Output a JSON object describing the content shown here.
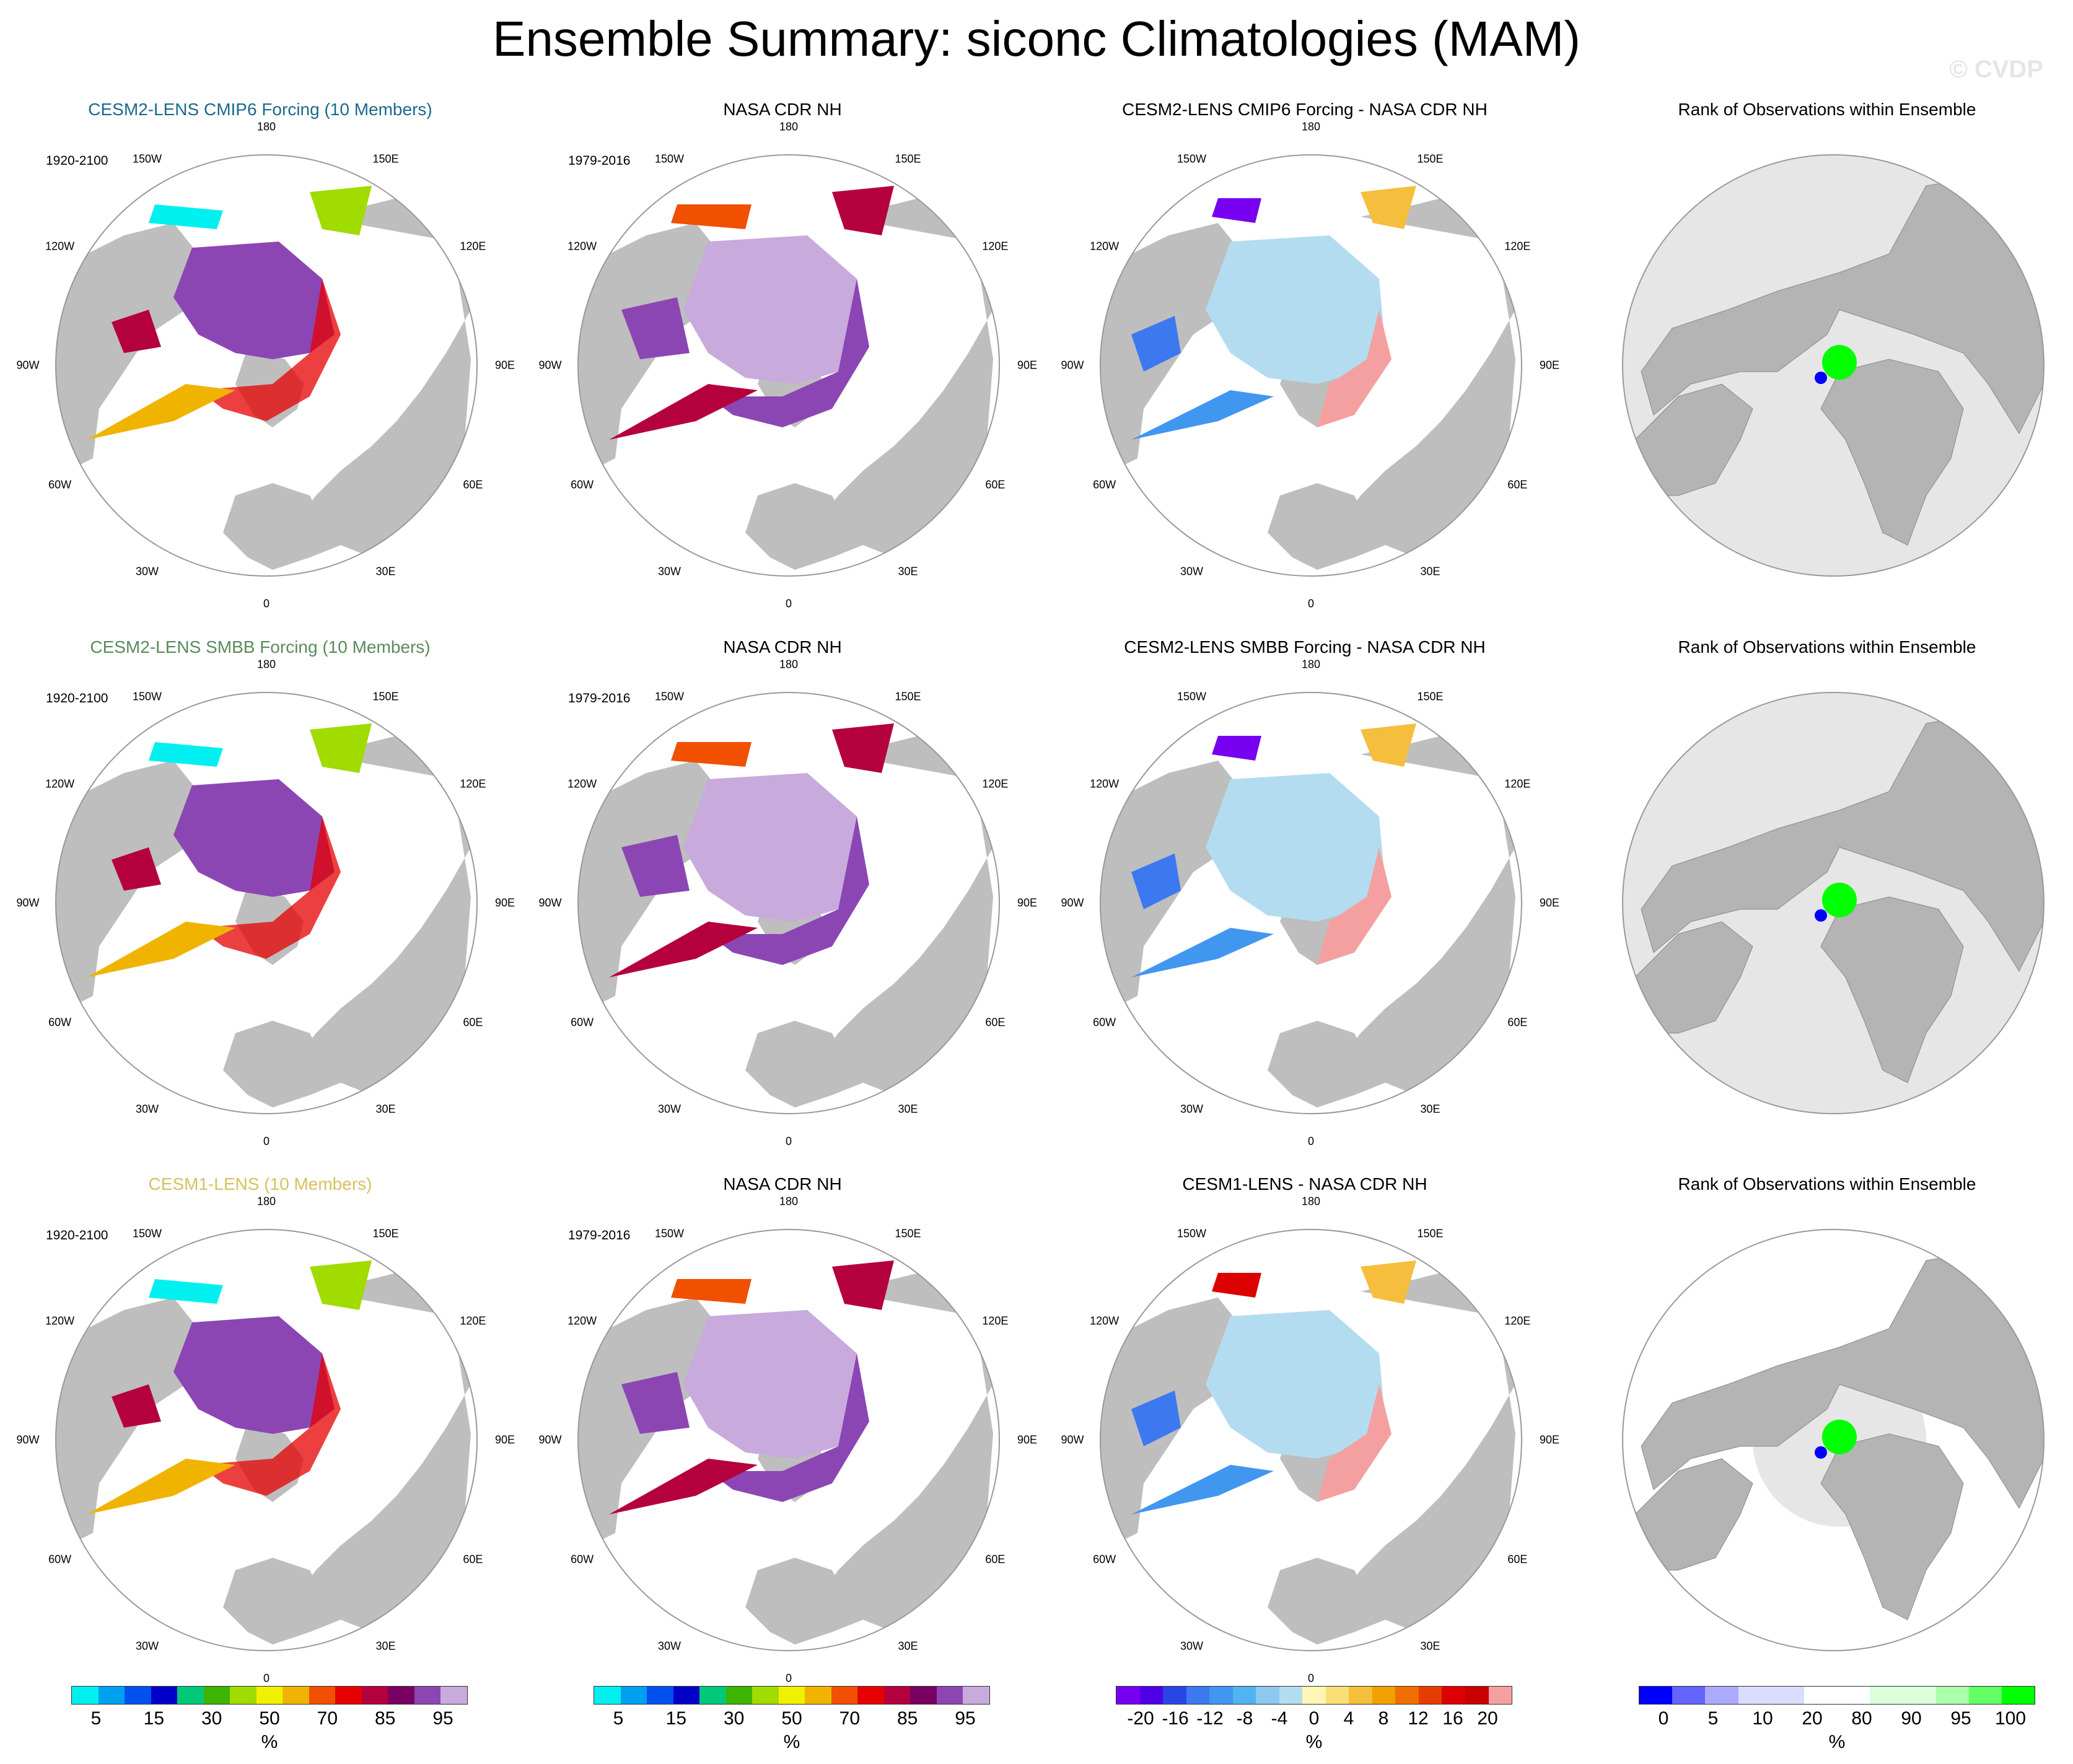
{
  "title": "Ensemble Summary: siconc Climatologies (MAM)",
  "copyright": "© CVDP",
  "lon_labels": [
    "180",
    "150E",
    "120E",
    "90E",
    "60E",
    "30E",
    "0",
    "30W",
    "60W",
    "90W",
    "120W",
    "150W"
  ],
  "rows": [
    {
      "panels": [
        {
          "title": "CESM2-LENS CMIP6 Forcing (10 Members)",
          "title_color": "#1a6a8e",
          "period": "1920-2100",
          "kind": "model"
        },
        {
          "title": "NASA CDR NH",
          "title_color": "#000000",
          "period": "1979-2016",
          "kind": "obs"
        },
        {
          "title": "CESM2-LENS CMIP6 Forcing - NASA CDR NH",
          "title_color": "#000000",
          "period": "",
          "kind": "diff"
        },
        {
          "title": "Rank of Observations within Ensemble",
          "title_color": "#000000",
          "period": "",
          "kind": "rank"
        }
      ]
    },
    {
      "panels": [
        {
          "title": "CESM2-LENS SMBB Forcing (10 Members)",
          "title_color": "#5a8a5a",
          "period": "1920-2100",
          "kind": "model"
        },
        {
          "title": "NASA CDR NH",
          "title_color": "#000000",
          "period": "1979-2016",
          "kind": "obs"
        },
        {
          "title": "CESM2-LENS SMBB Forcing - NASA CDR NH",
          "title_color": "#000000",
          "period": "",
          "kind": "diff"
        },
        {
          "title": "Rank of Observations within Ensemble",
          "title_color": "#000000",
          "period": "",
          "kind": "rank"
        }
      ]
    },
    {
      "panels": [
        {
          "title": "CESM1-LENS (10 Members)",
          "title_color": "#d8c060",
          "period": "1920-2100",
          "kind": "model"
        },
        {
          "title": "NASA CDR NH",
          "title_color": "#000000",
          "period": "1979-2016",
          "kind": "obs"
        },
        {
          "title": "CESM1-LENS - NASA CDR NH",
          "title_color": "#000000",
          "period": "",
          "kind": "diff"
        },
        {
          "title": "Rank of Observations within Ensemble",
          "title_color": "#000000",
          "period": "",
          "kind": "rank"
        }
      ]
    }
  ],
  "colorbars": [
    {
      "unit": "%",
      "colors": [
        "#00f0f0",
        "#00a0f0",
        "#0050f0",
        "#0000c8",
        "#00c878",
        "#3cb400",
        "#a0dc00",
        "#f0f000",
        "#f0b400",
        "#f05000",
        "#e60000",
        "#b4003c",
        "#780060",
        "#8c46b4",
        "#c8aadc"
      ],
      "ticks": [
        "5",
        "15",
        "30",
        "50",
        "70",
        "85",
        "95"
      ]
    },
    {
      "unit": "%",
      "colors": [
        "#00f0f0",
        "#00a0f0",
        "#0050f0",
        "#0000c8",
        "#00c878",
        "#3cb400",
        "#a0dc00",
        "#f0f000",
        "#f0b400",
        "#f05000",
        "#e60000",
        "#b4003c",
        "#780060",
        "#8c46b4",
        "#c8aadc"
      ],
      "ticks": [
        "5",
        "15",
        "30",
        "50",
        "70",
        "85",
        "95"
      ]
    },
    {
      "unit": "%",
      "colors": [
        "#7800f0",
        "#5000e6",
        "#2846e6",
        "#3c78f0",
        "#4196f0",
        "#50b4f0",
        "#8cc8f0",
        "#b4dcf0",
        "#fff5b4",
        "#fade78",
        "#f5be3c",
        "#f0a000",
        "#f06e00",
        "#e63c00",
        "#dc0000",
        "#c80000",
        "#f5a0a0"
      ],
      "ticks": [
        "-20",
        "-16",
        "-12",
        "-8",
        "-4",
        "0",
        "4",
        "8",
        "12",
        "16",
        "20"
      ]
    },
    {
      "unit": "%",
      "colors": [
        "#0000ff",
        "#6464ff",
        "#aaaaff",
        "#dcdcff",
        "#dcdcff",
        "#ffffff",
        "#ffffff",
        "#dcffdc",
        "#dcffdc",
        "#aaffaa",
        "#64ff64",
        "#00ff00"
      ],
      "ticks": [
        "0",
        "5",
        "10",
        "20",
        "80",
        "90",
        "95",
        "100"
      ]
    }
  ]
}
